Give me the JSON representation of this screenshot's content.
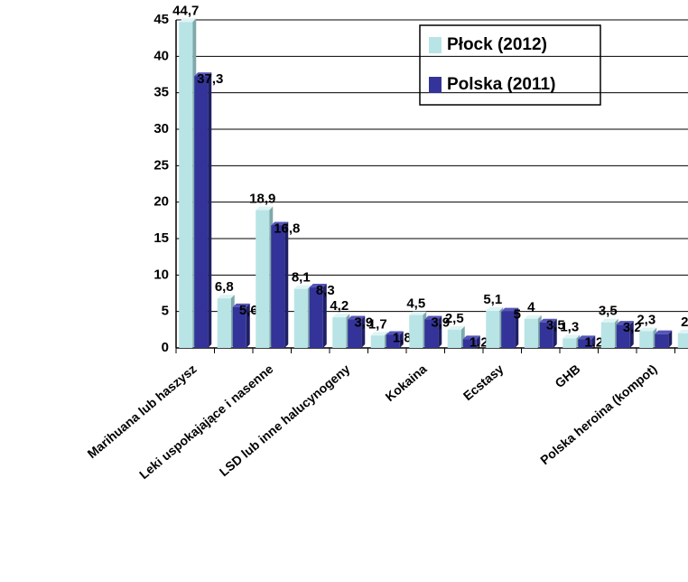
{
  "chart_data": {
    "type": "bar",
    "categories": [
      "Marihuana lub haszysz",
      null,
      "Leki uspokajające i nasenne",
      null,
      "LSD lub inne halucynogeny",
      null,
      "Kokaina",
      null,
      "Ecstasy",
      null,
      "GHB",
      null,
      "Polska heroina (kompot)",
      null
    ],
    "series": [
      {
        "name": "Płock (2012)",
        "color": "#b8e4e6",
        "values": [
          44.7,
          6.8,
          18.9,
          8.1,
          4.2,
          1.7,
          4.5,
          2.5,
          5.1,
          4,
          1.3,
          3.5,
          2.3,
          2
        ],
        "value_labels": [
          "44,7",
          "6,8",
          "18,9",
          "8,1",
          "4,2",
          "1,7",
          "4,5",
          "2,5",
          "5,1",
          "4",
          "1,3",
          "3,5",
          "2,3",
          "2"
        ]
      },
      {
        "name": "Polska (2011)",
        "color": "#333399",
        "values": [
          37.3,
          5.6,
          16.8,
          8.3,
          3.9,
          1.8,
          3.9,
          1.2,
          5,
          3.5,
          1.2,
          3.2,
          1.9,
          null
        ],
        "value_labels": [
          "37,3",
          "5,6",
          "16,8",
          "8,3",
          "3,9",
          "1,8",
          "3,9",
          "1,2",
          "5",
          "3,5",
          "1,2",
          "3,2",
          null,
          null
        ]
      }
    ],
    "ylim": [
      0,
      45
    ],
    "yticks": [
      0,
      5,
      10,
      15,
      20,
      25,
      30,
      35,
      40,
      45
    ],
    "grid": true,
    "legend": "top-right"
  }
}
